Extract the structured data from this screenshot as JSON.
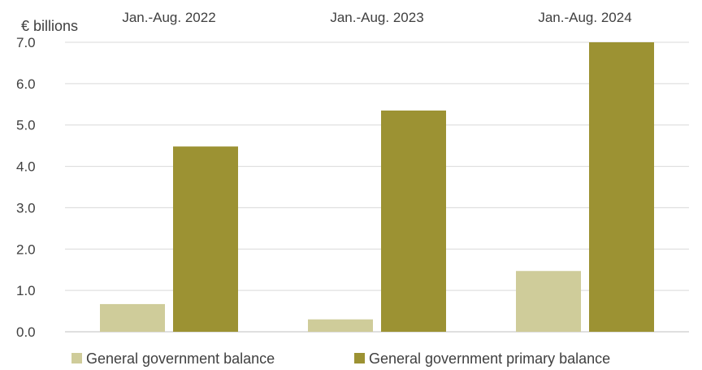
{
  "chart_data": {
    "type": "bar",
    "ylabel": "€ billions",
    "categories": [
      "Jan.-Aug. 2022",
      "Jan.-Aug. 2023",
      "Jan.-Aug. 2024"
    ],
    "series": [
      {
        "name": "General government balance",
        "color": "#cfcc9a",
        "values": [
          0.67,
          0.3,
          1.47
        ]
      },
      {
        "name": "General government primary balance",
        "color": "#9c9233",
        "values": [
          4.48,
          5.35,
          7.0
        ]
      }
    ],
    "ylim": [
      0,
      7
    ],
    "yticks": [
      "0.0",
      "1.0",
      "2.0",
      "3.0",
      "4.0",
      "5.0",
      "6.0",
      "7.0"
    ],
    "grid": true,
    "legend_position": "bottom"
  }
}
